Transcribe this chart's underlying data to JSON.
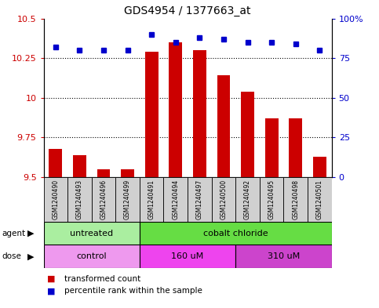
{
  "title": "GDS4954 / 1377663_at",
  "samples": [
    "GSM1240490",
    "GSM1240493",
    "GSM1240496",
    "GSM1240499",
    "GSM1240491",
    "GSM1240494",
    "GSM1240497",
    "GSM1240500",
    "GSM1240492",
    "GSM1240495",
    "GSM1240498",
    "GSM1240501"
  ],
  "transformed_counts": [
    9.68,
    9.64,
    9.55,
    9.55,
    10.29,
    10.35,
    10.3,
    10.14,
    10.04,
    9.87,
    9.87,
    9.63
  ],
  "percentile_ranks": [
    82,
    80,
    80,
    80,
    90,
    85,
    88,
    87,
    85,
    85,
    84,
    80
  ],
  "ylim_left": [
    9.5,
    10.5
  ],
  "ylim_right": [
    0,
    100
  ],
  "yticks_left": [
    9.5,
    9.75,
    10.0,
    10.25,
    10.5
  ],
  "ytick_labels_left": [
    "9.5",
    "9.75",
    "10",
    "10.25",
    "10.5"
  ],
  "yticks_right": [
    0,
    25,
    50,
    75,
    100
  ],
  "ytick_labels_right": [
    "0",
    "25",
    "50",
    "75",
    "100%"
  ],
  "bar_color": "#cc0000",
  "dot_color": "#0000cc",
  "bar_bottom": 9.5,
  "agent_groups": [
    {
      "label": "untreated",
      "start": 0,
      "end": 4,
      "color": "#aaeea0"
    },
    {
      "label": "cobalt chloride",
      "start": 4,
      "end": 12,
      "color": "#66dd44"
    }
  ],
  "dose_groups": [
    {
      "label": "control",
      "start": 0,
      "end": 4,
      "color": "#ee99ee"
    },
    {
      "label": "160 uM",
      "start": 4,
      "end": 8,
      "color": "#ee44ee"
    },
    {
      "label": "310 uM",
      "start": 8,
      "end": 12,
      "color": "#cc44cc"
    }
  ],
  "legend_bar_label": "transformed count",
  "legend_dot_label": "percentile rank within the sample",
  "background_color": "#ffffff",
  "plot_bg_color": "#ffffff",
  "axis_color_left": "#cc0000",
  "axis_color_right": "#0000cc",
  "sample_box_color": "#d0d0d0",
  "gridline_color": "#000000"
}
